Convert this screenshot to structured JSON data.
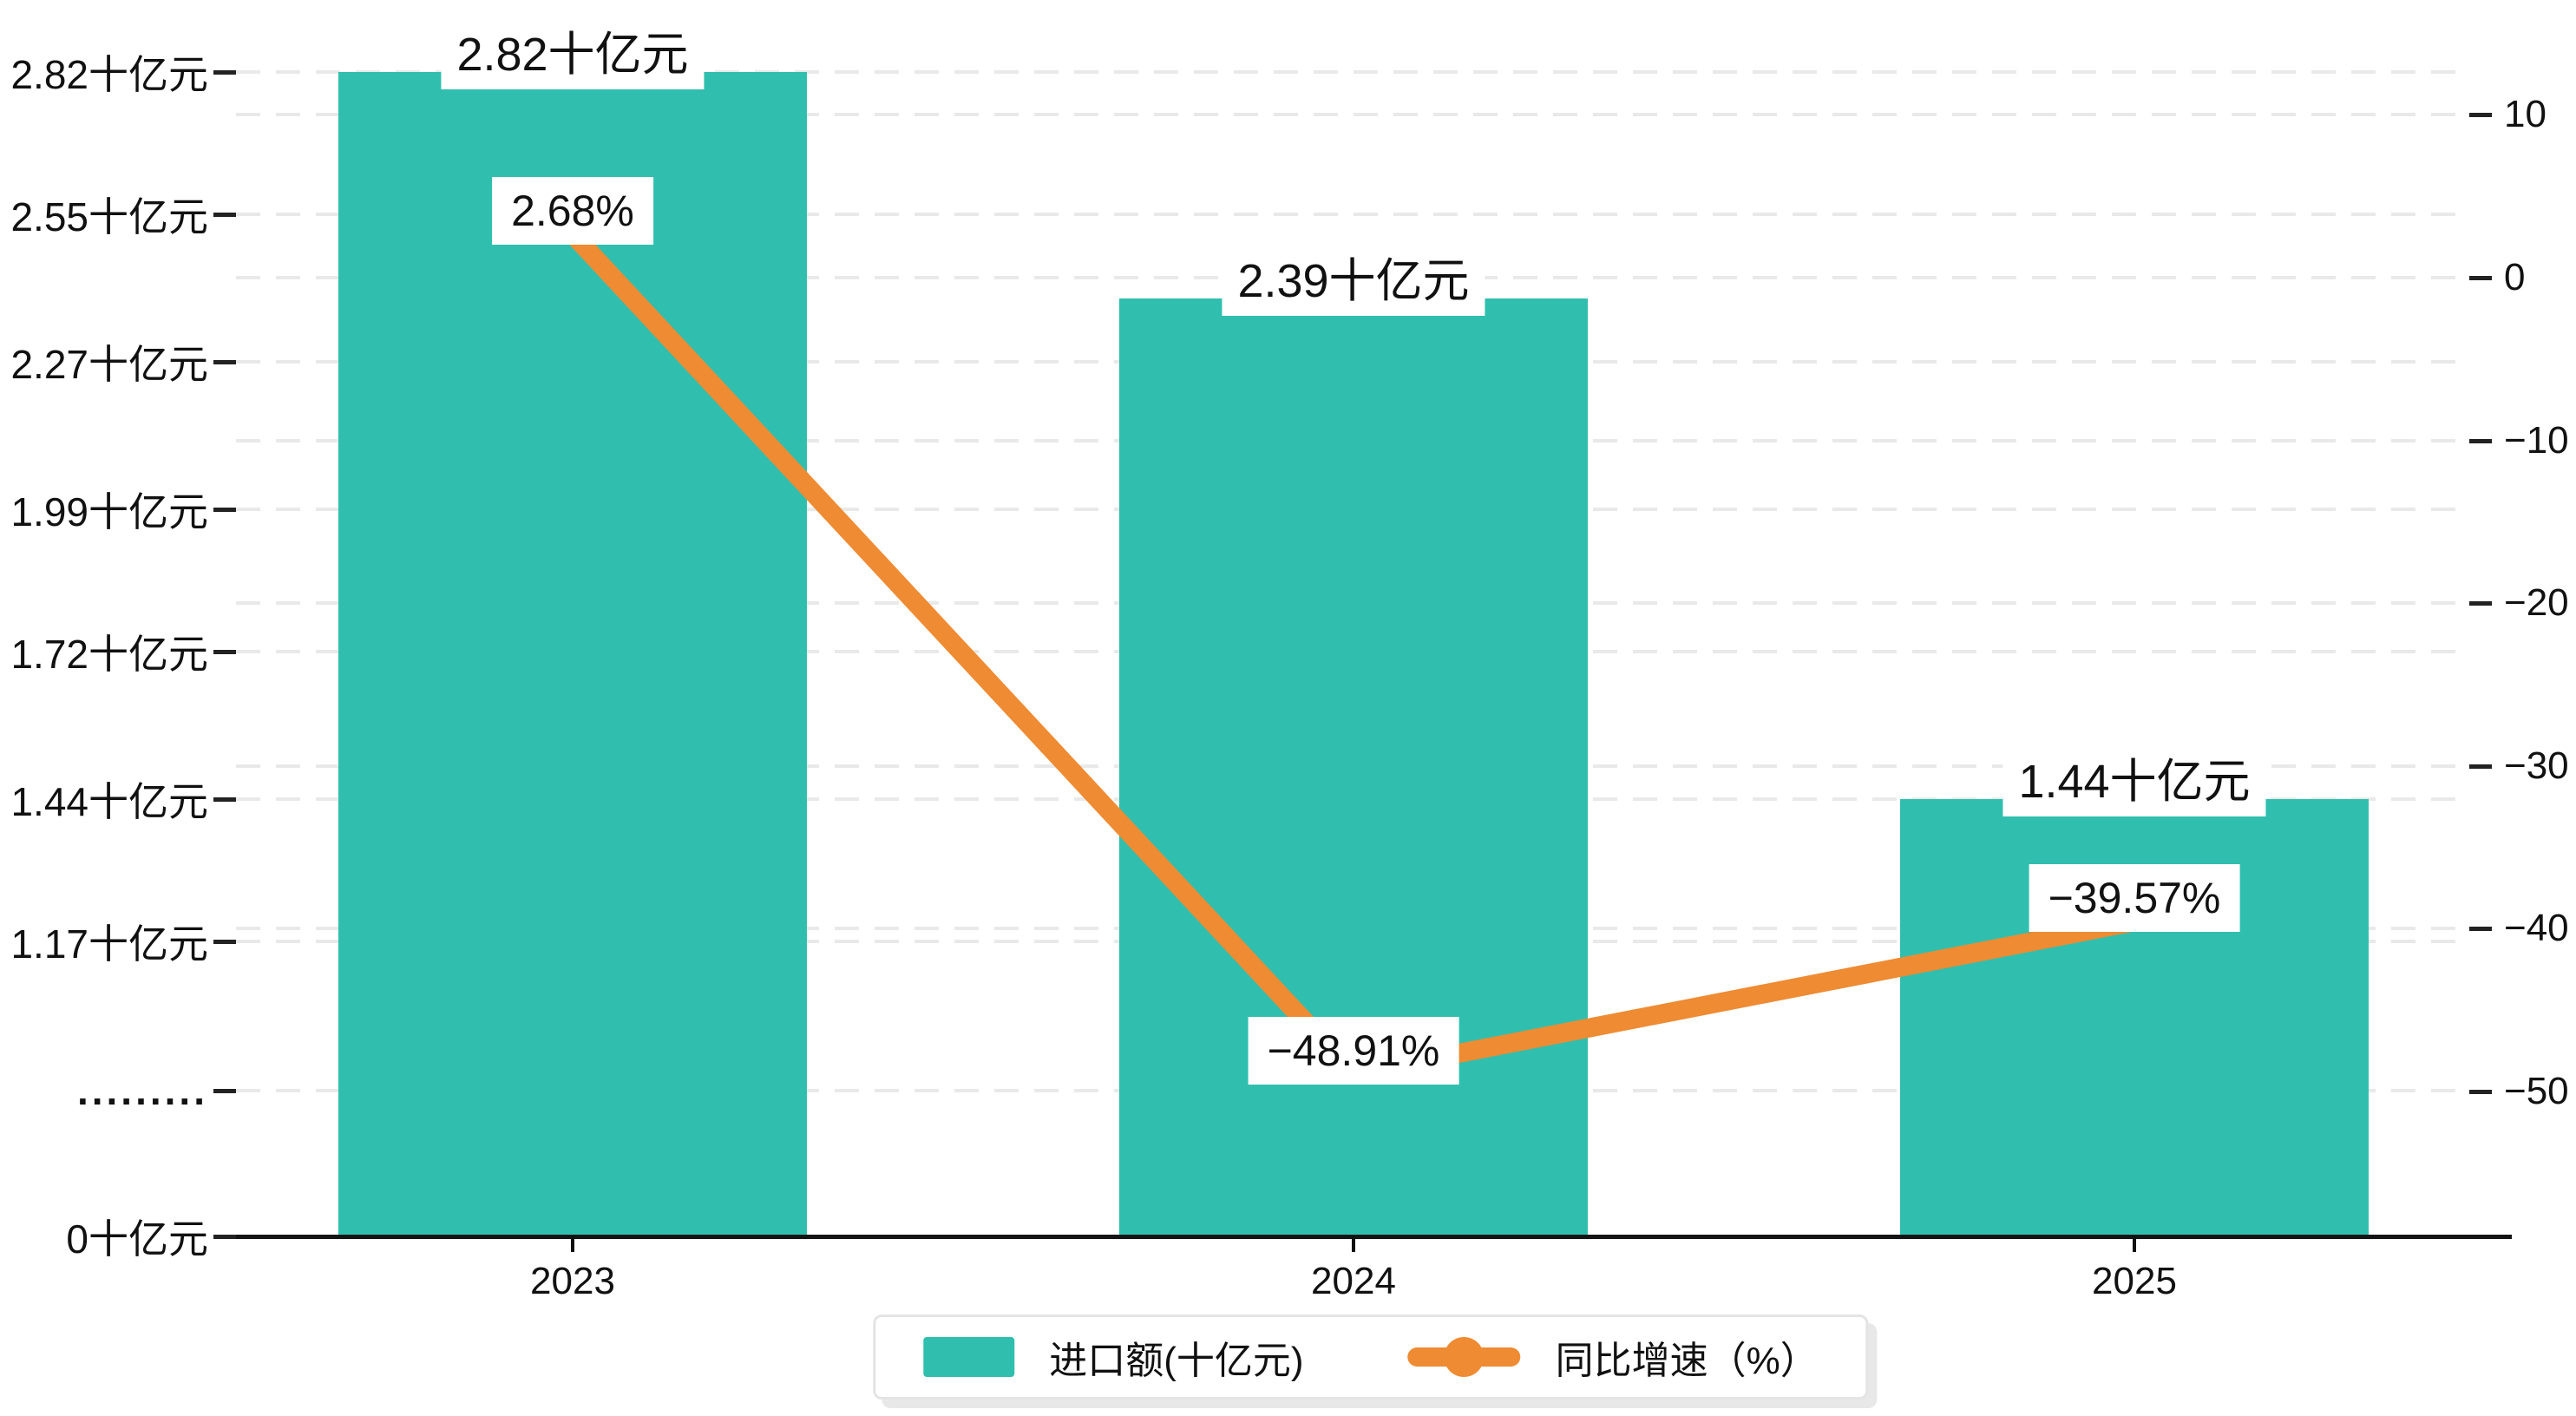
{
  "chart_data": {
    "type": "bar",
    "combo": "bar+line dual axis",
    "categories": [
      "2023",
      "2024",
      "2025"
    ],
    "series": [
      {
        "name": "进口额(十亿元)",
        "type": "bar",
        "axis": "left",
        "color": "#30BFAE",
        "values": [
          2.82,
          2.39,
          1.44
        ],
        "data_labels": [
          "2.82十亿元",
          "2.39十亿元",
          "1.44十亿元"
        ]
      },
      {
        "name": "同比增速（%）",
        "type": "line",
        "axis": "right",
        "color": "#EE8B33",
        "values": [
          2.68,
          -48.91,
          -39.57
        ],
        "data_labels": [
          "2.68%",
          "−48.91%",
          "−39.57%"
        ]
      }
    ],
    "left_axis": {
      "unit": "十亿元",
      "tick_labels": [
        "2.82十亿元",
        "2.55十亿元",
        "2.27十亿元",
        "1.99十亿元",
        "1.72十亿元",
        "1.44十亿元",
        "1.17十亿元",
        ".........",
        "0十亿元"
      ],
      "tick_values": [
        2.82,
        2.55,
        2.27,
        1.99,
        1.72,
        1.44,
        1.17,
        null,
        0
      ],
      "axis_break": true
    },
    "right_axis": {
      "unit": "%",
      "tick_labels": [
        "10",
        "0",
        "−10",
        "−20",
        "−30",
        "−40",
        "−50"
      ],
      "tick_values": [
        10,
        0,
        -10,
        -20,
        -30,
        -40,
        -50
      ],
      "range": [
        -55,
        13
      ]
    },
    "x_axis": {
      "tick_labels": [
        "2023",
        "2024",
        "2025"
      ]
    },
    "legend": [
      {
        "label": "进口额(十亿元)",
        "marker": "rect",
        "color": "#30BFAE"
      },
      {
        "label": "同比增速（%）",
        "marker": "line-dot",
        "color": "#EE8B33"
      }
    ],
    "grid": {
      "horizontal_dashed": true,
      "vertical": false
    },
    "gridline_color": "#e9e9e9",
    "axis_line_color": "#141414"
  }
}
